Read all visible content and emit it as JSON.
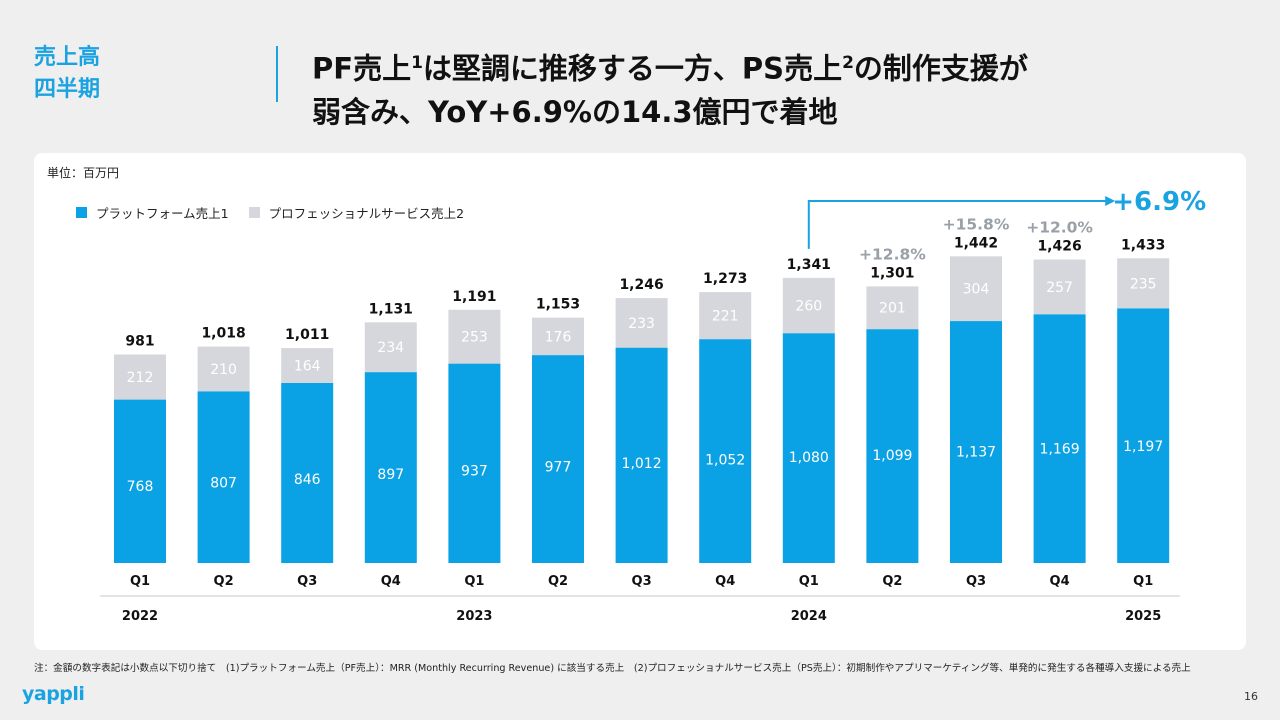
{
  "section": {
    "line1": "売上高",
    "line2": "四半期"
  },
  "headline": {
    "l1_a": "PF売上",
    "l1_sup1": "1",
    "l1_b": "は堅調に推移する一方、PS売上",
    "l1_sup2": "2",
    "l1_c": "の制作支援が",
    "l2": "弱含み、YoY+6.9%の14.3億円で着地"
  },
  "unit_label": "単位：百万円",
  "colors": {
    "accent": "#1aa3e0",
    "pf": "#0aa2e4",
    "ps": "#d5d7dd",
    "growth": "#9aa0a8"
  },
  "chart_data": {
    "type": "bar",
    "stacked": true,
    "categories": [
      "Q1",
      "Q2",
      "Q3",
      "Q4",
      "Q1",
      "Q2",
      "Q3",
      "Q4",
      "Q1",
      "Q2",
      "Q3",
      "Q4",
      "Q1"
    ],
    "years": [
      {
        "label": "2022",
        "index": 0
      },
      {
        "label": "2023",
        "index": 4
      },
      {
        "label": "2024",
        "index": 8
      },
      {
        "label": "2025",
        "index": 12
      }
    ],
    "series": [
      {
        "name": "プラットフォーム売上1",
        "values": [
          768,
          807,
          846,
          897,
          937,
          977,
          1012,
          1052,
          1080,
          1099,
          1137,
          1169,
          1197
        ]
      },
      {
        "name": "プロフェッショナルサービス売上2",
        "values": [
          212,
          210,
          164,
          234,
          253,
          176,
          233,
          221,
          260,
          201,
          304,
          257,
          235
        ]
      }
    ],
    "totals": [
      "981",
      "1,018",
      "1,011",
      "1,131",
      "1,191",
      "1,153",
      "1,246",
      "1,273",
      "1,341",
      "1,301",
      "1,442",
      "1,426",
      "1,433"
    ],
    "growth_labels": [
      {
        "index": 9,
        "text": "+12.8%"
      },
      {
        "index": 10,
        "text": "+15.8%"
      },
      {
        "index": 11,
        "text": "+12.0%"
      }
    ],
    "yoy_arrow": {
      "from_index": 8,
      "to_index": 12,
      "text": "+6.9%"
    },
    "ylim": [
      0,
      1600
    ],
    "grid": false,
    "legend_position": "top-left"
  },
  "footnote": "注：金額の数字表記は小数点以下切り捨て　(1)プラットフォーム売上（PF売上）：MRR (Monthly Recurring Revenue) に該当する売上　(2)プロフェッショナルサービス売上（PS売上）：初期制作やアプリマーケティング等、単発的に発生する各種導入支援による売上",
  "logo": "yappli",
  "page_number": "16"
}
